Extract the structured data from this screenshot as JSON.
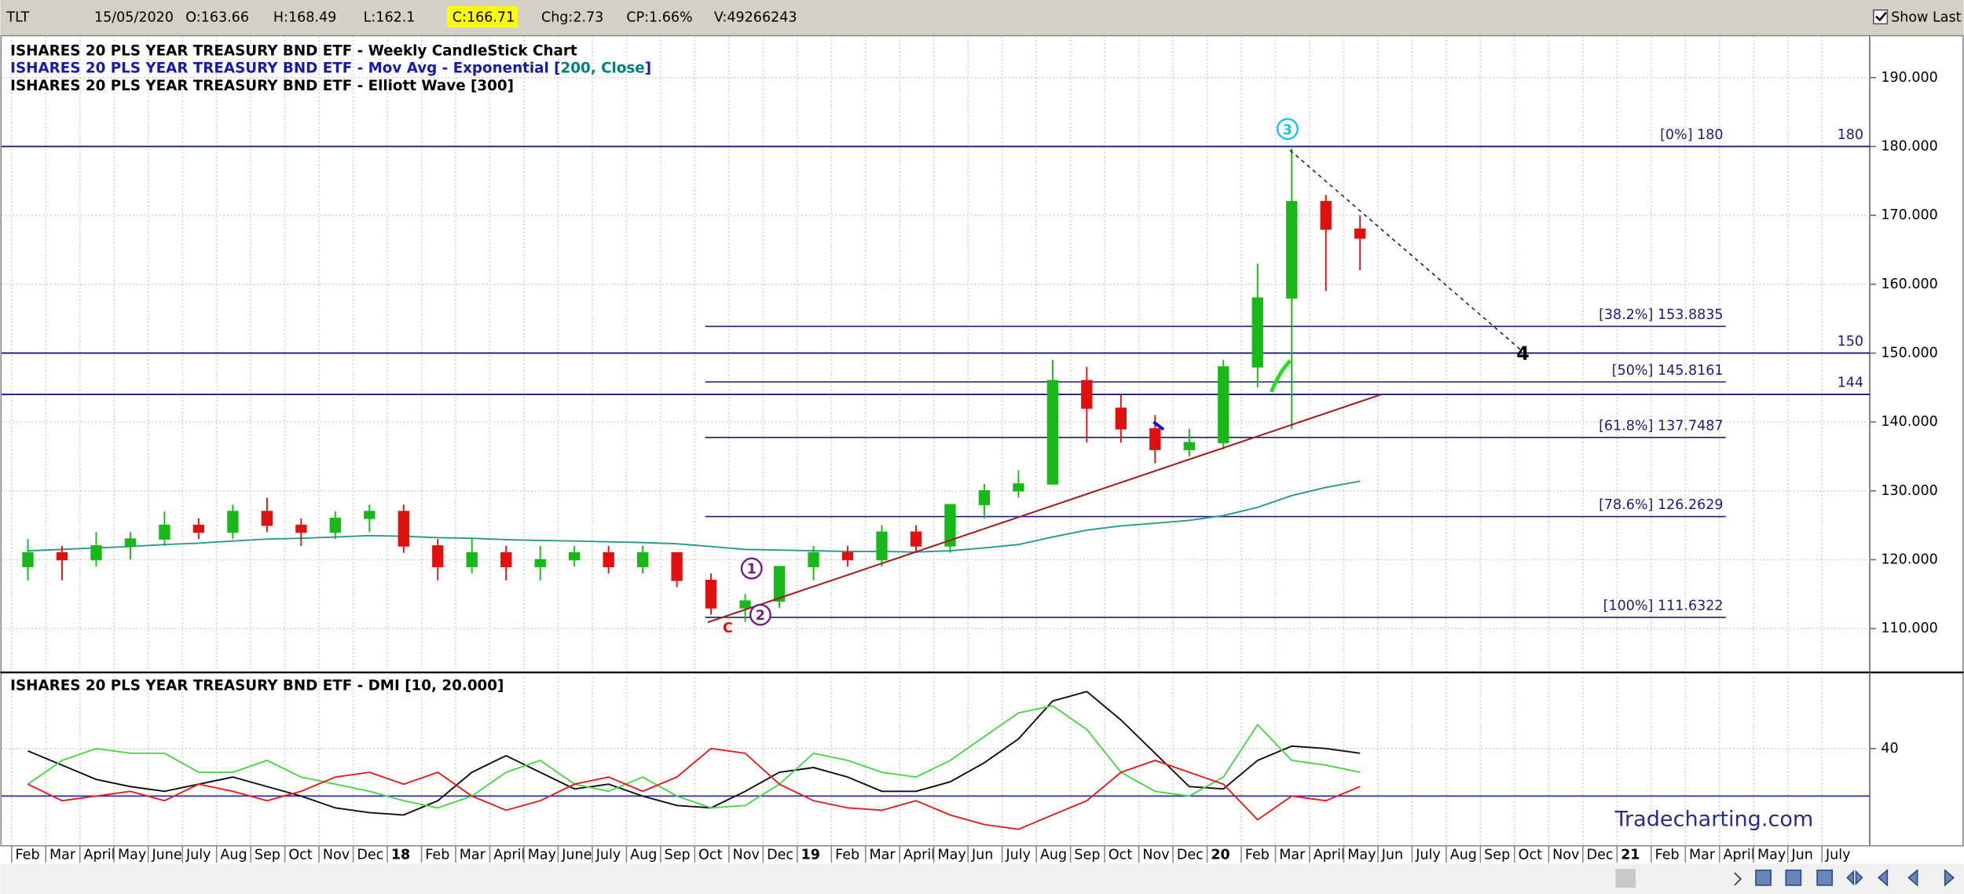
{
  "toolbar": {
    "symbol": "TLT",
    "date": "15/05/2020",
    "open": "O:163.66",
    "high": "H:168.49",
    "low": "L:162.1",
    "close": "C:166.71",
    "change": "Chg:2.73",
    "change_pct": "CP:1.66%",
    "volume": "V:49266243",
    "show_last": "Show Last"
  },
  "watermark": "Tradecharting.com",
  "chart_data": [
    {
      "type": "candlestick",
      "title": "ISHARES 20 PLS YEAR TREASURY BND ETF - Weekly CandleStick Chart",
      "indicator_title": "ISHARES 20 PLS YEAR TREASURY BND ETF - Elliott Wave [300]",
      "categories": [
        "Feb",
        "Mar",
        "April",
        "May",
        "June",
        "July",
        "Aug",
        "Sep",
        "Oct",
        "Nov",
        "Dec",
        "18",
        "Feb",
        "Mar",
        "April",
        "May",
        "June",
        "July",
        "Aug",
        "Sep",
        "Oct",
        "Nov",
        "Dec",
        "19",
        "Feb",
        "Mar",
        "April",
        "May",
        "Jun",
        "July",
        "Aug",
        "Sep",
        "Oct",
        "Nov",
        "Dec",
        "20",
        "Feb",
        "Mar",
        "April",
        "May",
        "Jun",
        "July",
        "Aug",
        "Sep",
        "Oct",
        "Nov",
        "Dec",
        "21",
        "Feb",
        "Mar",
        "April",
        "May",
        "Jun",
        "July"
      ],
      "open": [
        119,
        121,
        120,
        122,
        123,
        125,
        124,
        127,
        125,
        124,
        126,
        127,
        122,
        119,
        121,
        119,
        120,
        121,
        119,
        121,
        117,
        113,
        114,
        119,
        121,
        120,
        124,
        122,
        128,
        130,
        131,
        146,
        142,
        139,
        136,
        137,
        148,
        158,
        172,
        168,
        null,
        null,
        null,
        null,
        null,
        null,
        null,
        null,
        null,
        null,
        null,
        null,
        null,
        null
      ],
      "high": [
        123,
        122,
        124,
        124,
        127,
        126,
        128,
        129,
        126,
        127,
        128,
        128,
        123,
        123,
        122,
        122,
        122,
        122,
        122,
        121,
        118,
        115,
        119,
        122,
        122,
        125,
        125,
        128,
        131,
        133,
        149,
        148,
        144,
        141,
        139,
        149,
        163,
        179.7,
        173,
        170,
        null,
        null,
        null,
        null,
        null,
        null,
        null,
        null,
        null,
        null,
        null,
        null,
        null,
        null
      ],
      "low": [
        117,
        117,
        119,
        120,
        122,
        123,
        123,
        124,
        122,
        123,
        124,
        121,
        117,
        118,
        117,
        117,
        119,
        118,
        118,
        116,
        112,
        111,
        113,
        117,
        119,
        119,
        121,
        121,
        126,
        129,
        131,
        137,
        137,
        134,
        135,
        136,
        145,
        139,
        159,
        162,
        null,
        null,
        null,
        null,
        null,
        null,
        null,
        null,
        null,
        null,
        null,
        null,
        null,
        null
      ],
      "close": [
        121,
        120,
        122,
        123,
        125,
        124,
        127,
        125,
        124,
        126,
        127,
        122,
        119,
        121,
        119,
        120,
        121,
        119,
        121,
        117,
        113,
        114,
        119,
        121,
        120,
        124,
        122,
        128,
        130,
        131,
        146,
        142,
        139,
        136,
        137,
        148,
        158,
        172,
        168,
        166.71,
        null,
        null,
        null,
        null,
        null,
        null,
        null,
        null,
        null,
        null,
        null,
        null,
        null,
        null
      ],
      "up_color": "#18b818",
      "down_color": "#e01010",
      "series": [
        {
          "name_parts": [
            "ISHARES 20 PLS YEAR TREASURY BND ETF - Mov Avg - Exponential [",
            "200, Close",
            "]"
          ],
          "color": "#2a9a8a",
          "values": [
            121.3,
            121.5,
            121.7,
            121.9,
            122.2,
            122.4,
            122.7,
            123,
            123.1,
            123.3,
            123.5,
            123.4,
            123.2,
            123.1,
            122.9,
            122.8,
            122.7,
            122.6,
            122.5,
            122.3,
            121.9,
            121.5,
            121.4,
            121.3,
            121.2,
            121.2,
            121.1,
            121.3,
            121.7,
            122.2,
            123.3,
            124.3,
            124.9,
            125.3,
            125.7,
            126.4,
            127.6,
            129.3,
            130.5,
            131.4,
            null,
            null,
            null,
            null,
            null,
            null,
            null,
            null,
            null,
            null,
            null,
            null,
            null,
            null
          ]
        }
      ],
      "fib_levels": [
        {
          "value": 180,
          "label": "[0%] 180"
        },
        {
          "value": 153.8835,
          "label": "[38.2%] 153.8835"
        },
        {
          "value": 145.8161,
          "label": "[50%] 145.8161"
        },
        {
          "value": 137.7487,
          "label": "[61.8%] 137.7487"
        },
        {
          "value": 126.2629,
          "label": "[78.6%] 126.2629"
        },
        {
          "value": 111.6322,
          "label": "[100%] 111.6322"
        }
      ],
      "levels": [
        180,
        150,
        144
      ],
      "wave_labels": [
        "1",
        "2",
        "3",
        "4",
        "C"
      ],
      "ylim": [
        104,
        196
      ],
      "yticks": [
        {
          "value": 110,
          "label": "110.000"
        },
        {
          "value": 120,
          "label": "120.000"
        },
        {
          "value": 130,
          "label": "130.000"
        },
        {
          "value": 140,
          "label": "140.000"
        },
        {
          "value": 150,
          "label": "150.000"
        },
        {
          "value": 160,
          "label": "160.000"
        },
        {
          "value": 170,
          "label": "170.000"
        },
        {
          "value": 180,
          "label": "180.000"
        },
        {
          "value": 190,
          "label": "190.000"
        }
      ],
      "grid": true
    },
    {
      "type": "line",
      "title": "ISHARES 20 PLS YEAR TREASURY BND ETF - DMI [10, 20.000]",
      "threshold": 20,
      "threshold_color": "#2020c0",
      "series": [
        {
          "color": "#101010",
          "values": [
            39,
            33,
            27,
            24,
            22,
            25,
            28,
            24,
            20,
            15,
            13,
            12,
            18,
            30,
            37,
            30,
            23,
            25,
            20,
            16,
            15,
            22,
            30,
            32,
            28,
            22,
            22,
            26,
            34,
            44,
            60,
            64,
            52,
            38,
            24,
            23,
            35,
            41,
            40,
            38
          ]
        },
        {
          "color": "#4cd44c",
          "values": [
            25,
            35,
            40,
            38,
            38,
            30,
            30,
            35,
            28,
            25,
            22,
            18,
            15,
            20,
            30,
            35,
            25,
            22,
            28,
            20,
            15,
            16,
            25,
            38,
            35,
            30,
            28,
            35,
            45,
            55,
            58,
            48,
            30,
            22,
            20,
            28,
            50,
            35,
            33,
            30
          ]
        },
        {
          "color": "#e02020",
          "values": [
            25,
            18,
            20,
            22,
            18,
            25,
            22,
            18,
            22,
            28,
            30,
            25,
            30,
            20,
            14,
            18,
            25,
            28,
            22,
            28,
            40,
            38,
            25,
            18,
            15,
            14,
            18,
            12,
            8,
            6,
            12,
            18,
            30,
            35,
            30,
            25,
            10,
            20,
            18,
            24
          ]
        }
      ],
      "ylim": [
        3,
        71
      ],
      "yticks": [
        40
      ],
      "grid": true
    }
  ]
}
